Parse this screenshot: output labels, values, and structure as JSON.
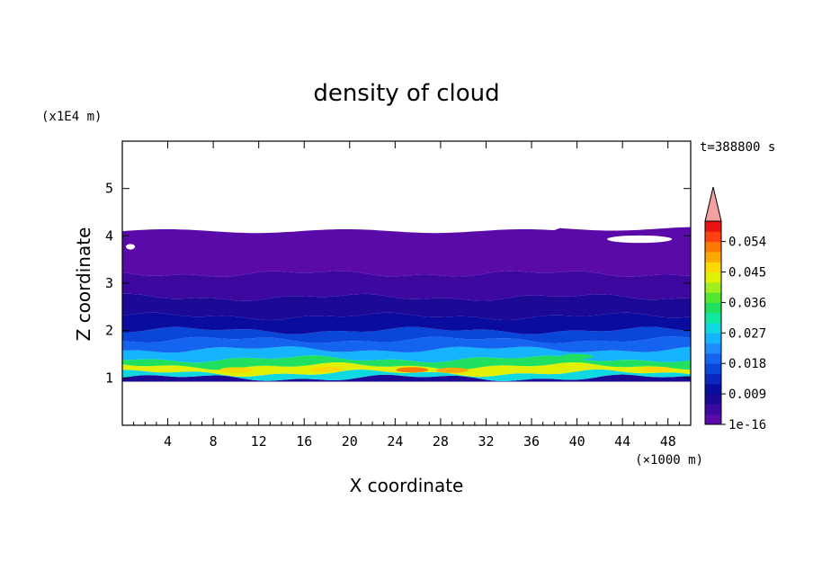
{
  "chart_data": {
    "type": "heatmap",
    "title": "density of cloud",
    "xlabel": "X coordinate",
    "ylabel": "Z coordinate",
    "x_unit": "(×1000 m)",
    "y_unit": "(x1E4 m)",
    "time_label": "t=388800 s",
    "xlim": [
      0,
      50
    ],
    "ylim": [
      0,
      6
    ],
    "x_ticks": [
      "4",
      "8",
      "12",
      "16",
      "20",
      "24",
      "28",
      "32",
      "36",
      "40",
      "44",
      "48"
    ],
    "y_ticks": [
      "1",
      "2",
      "3",
      "4",
      "5"
    ],
    "colorbar": {
      "labels": [
        "1e-16",
        "0.009",
        "0.018",
        "0.027",
        "0.036",
        "0.045",
        "0.054"
      ],
      "level_values": [
        0,
        0.003,
        0.006,
        0.009,
        0.012,
        0.015,
        0.018,
        0.021,
        0.024,
        0.027,
        0.03,
        0.033,
        0.036,
        0.039,
        0.042,
        0.045,
        0.048,
        0.051,
        0.054,
        0.057
      ],
      "colors": [
        "#5a0aa8",
        "#3c08a0",
        "#1c0a96",
        "#0a0ca0",
        "#0a28c0",
        "#0a46d8",
        "#1464f0",
        "#1e8cff",
        "#14b4ff",
        "#10d8e0",
        "#10e8a0",
        "#20e060",
        "#50e830",
        "#a0f020",
        "#e0f000",
        "#ffd800",
        "#ffa800",
        "#ff7800",
        "#ff4010",
        "#e81414"
      ],
      "extend_color": "#f4a0a0"
    },
    "field_description_bands": [
      {
        "z_from": 0.92,
        "z_to": 1.0,
        "level": 2
      },
      {
        "z_from": 1.0,
        "z_to": 1.1,
        "level": 9
      },
      {
        "z_from": 1.1,
        "z_to": 1.25,
        "level": 14
      },
      {
        "z_from": 1.25,
        "z_to": 1.4,
        "level": 11
      },
      {
        "z_from": 1.4,
        "z_to": 1.6,
        "level": 8
      },
      {
        "z_from": 1.6,
        "z_to": 1.8,
        "level": 6
      },
      {
        "z_from": 1.8,
        "z_to": 2.0,
        "level": 5
      },
      {
        "z_from": 2.0,
        "z_to": 2.3,
        "level": 3
      },
      {
        "z_from": 2.3,
        "z_to": 2.7,
        "level": 2
      },
      {
        "z_from": 2.7,
        "z_to": 3.2,
        "level": 1
      },
      {
        "z_from": 3.2,
        "z_to": 4.1,
        "level": 0
      }
    ]
  }
}
